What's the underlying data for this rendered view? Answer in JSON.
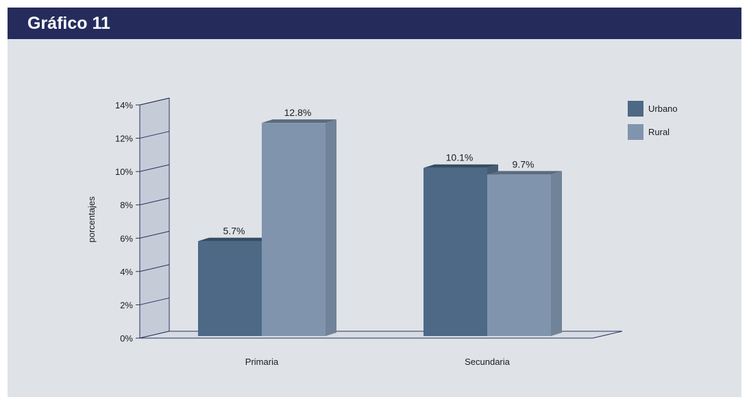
{
  "header": {
    "title": "Gráfico 11"
  },
  "colors": {
    "header_bg": "#252c5c",
    "panel_bg": "#dfe3e8",
    "urbano": "#4d6986",
    "rural": "#8095ad"
  },
  "chart_data": {
    "type": "bar",
    "categories": [
      "Primaria",
      "Secundaria"
    ],
    "series": [
      {
        "name": "Urbano",
        "values": [
          5.7,
          10.1
        ],
        "labels": [
          "5.7%",
          "10.1%"
        ]
      },
      {
        "name": "Rural",
        "values": [
          12.8,
          9.7
        ],
        "labels": [
          "12.8%",
          "9.7%"
        ]
      }
    ],
    "ylabel": "porcentajes",
    "ylim": [
      0,
      14
    ],
    "yticks": [
      "0%",
      "2%",
      "4%",
      "6%",
      "8%",
      "10%",
      "12%",
      "14%"
    ],
    "legend_position": "top-right",
    "style": "3d"
  }
}
